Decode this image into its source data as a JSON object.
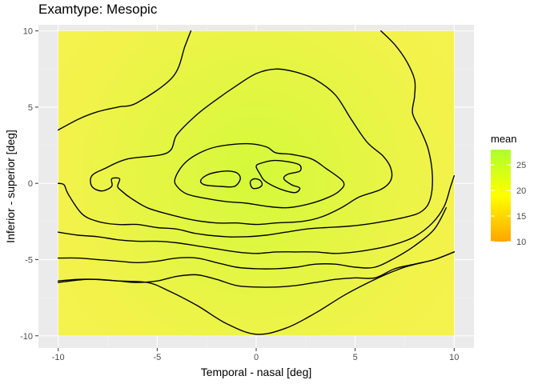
{
  "chart_data": {
    "type": "heatmap",
    "title": "Examtype:  Mesopic",
    "xlabel": "Temporal - nasal [deg]",
    "ylabel": "Inferior - superior [deg]",
    "xlim": [
      -11,
      11
    ],
    "ylim": [
      -10.8,
      10.4
    ],
    "field_extent": {
      "x": [
        -10,
        10
      ],
      "y": [
        -10,
        10
      ]
    },
    "x_ticks": [
      -10,
      -5,
      0,
      5,
      10
    ],
    "x_tick_labels": [
      "-10",
      "-5",
      "0",
      "5",
      "10"
    ],
    "y_ticks": [
      -10,
      -5,
      0,
      5,
      10
    ],
    "y_tick_labels": [
      "-10",
      "-5",
      "0",
      "5",
      "10"
    ],
    "grid": true,
    "legend": {
      "title": "mean",
      "placement": "right",
      "range": [
        10,
        28
      ],
      "breaks": [
        10,
        15,
        20,
        25
      ],
      "break_labels": [
        "10",
        "15",
        "20",
        "25"
      ],
      "colors": [
        {
          "value": 10,
          "color": "#ffa500"
        },
        {
          "value": 19,
          "color": "#ffff00"
        },
        {
          "value": 28,
          "color": "#adff2f"
        }
      ]
    },
    "surface": {
      "value_range": [
        19,
        26
      ],
      "center": [
        0,
        0.5
      ],
      "colors": {
        "low": "#f4f24c",
        "high": "#d4f93a"
      }
    },
    "contours": [
      {
        "name": "c1",
        "points": [
          [
            -2.8,
            0.2
          ],
          [
            -2.4,
            0.6
          ],
          [
            -1.6,
            0.8
          ],
          [
            -1,
            0.7
          ],
          [
            -0.8,
            0.3
          ],
          [
            -1.1,
            -0.2
          ],
          [
            -1.8,
            -0.2
          ],
          [
            -2.6,
            -0.1
          ],
          [
            -2.8,
            0.2
          ]
        ]
      },
      {
        "name": "c2",
        "points": [
          [
            -0.3,
            0.1
          ],
          [
            -0.1,
            0.3
          ],
          [
            0.2,
            0.2
          ],
          [
            0.3,
            -0.1
          ],
          [
            0.1,
            -0.3
          ],
          [
            -0.2,
            -0.3
          ],
          [
            -0.3,
            0.1
          ]
        ]
      },
      {
        "name": "c3",
        "points": [
          [
            -4.1,
            0.3
          ],
          [
            -3.7,
            1.2
          ],
          [
            -3,
            1.9
          ],
          [
            -2,
            2.4
          ],
          [
            -0.5,
            2.6
          ],
          [
            0.5,
            2.4
          ],
          [
            1,
            2
          ],
          [
            1.8,
            1.9
          ],
          [
            2.8,
            1.6
          ],
          [
            3.5,
            1
          ],
          [
            4.4,
            0.1
          ],
          [
            4.2,
            -0.5
          ],
          [
            3.5,
            -1
          ],
          [
            2.5,
            -1.4
          ],
          [
            1.5,
            -1.6
          ],
          [
            0.5,
            -1.5
          ],
          [
            -0.5,
            -1.3
          ],
          [
            -1.5,
            -1.2
          ],
          [
            -2.5,
            -1
          ],
          [
            -3.5,
            -0.7
          ],
          [
            -4,
            -0.2
          ],
          [
            -4.1,
            0.3
          ]
        ]
      },
      {
        "name": "c4",
        "points": [
          [
            0,
            1.1
          ],
          [
            0.2,
            1.3
          ],
          [
            0.9,
            1.5
          ],
          [
            1.7,
            1.4
          ],
          [
            2.2,
            1.2
          ],
          [
            2.2,
            0.8
          ],
          [
            1.6,
            0.6
          ],
          [
            1.4,
            0.3
          ],
          [
            1.8,
            -0.1
          ],
          [
            2.2,
            -0.3
          ],
          [
            2,
            -0.6
          ],
          [
            1.5,
            -0.5
          ],
          [
            0.9,
            -0.2
          ],
          [
            0.4,
            0.2
          ],
          [
            0.2,
            0.6
          ],
          [
            0,
            1.1
          ]
        ]
      },
      {
        "name": "c5",
        "points": [
          [
            -8.3,
            0.5
          ],
          [
            -7.6,
            1
          ],
          [
            -6.5,
            1.6
          ],
          [
            -4.5,
            2
          ],
          [
            -4,
            3.2
          ],
          [
            -3,
            4.5
          ],
          [
            -2,
            5.5
          ],
          [
            -1,
            6.4
          ],
          [
            0,
            7.2
          ],
          [
            1,
            7.5
          ],
          [
            2,
            7.3
          ],
          [
            3,
            6.8
          ],
          [
            4,
            5.8
          ],
          [
            4.8,
            4.2
          ],
          [
            5.6,
            2.7
          ],
          [
            6.4,
            1.8
          ],
          [
            6.8,
            1
          ],
          [
            6.8,
            0.2
          ],
          [
            6.3,
            -0.4
          ],
          [
            5.2,
            -0.9
          ],
          [
            4.3,
            -1.6
          ],
          [
            3.3,
            -2.2
          ],
          [
            2.3,
            -2.5
          ],
          [
            1,
            -2.6
          ],
          [
            0,
            -2.7
          ],
          [
            -1,
            -2.6
          ],
          [
            -2,
            -2.6
          ],
          [
            -3.2,
            -2.4
          ],
          [
            -4.5,
            -2
          ],
          [
            -5.5,
            -1.6
          ],
          [
            -6.3,
            -1
          ],
          [
            -6.8,
            -0.5
          ],
          [
            -7,
            -0.2
          ],
          [
            -6.9,
            0.3
          ],
          [
            -7.3,
            0.3
          ],
          [
            -7.3,
            -0.2
          ],
          [
            -7.8,
            -0.5
          ],
          [
            -8.3,
            -0.2
          ],
          [
            -8.3,
            0.5
          ]
        ]
      },
      {
        "name": "c6",
        "points": [
          [
            -10,
            3.5
          ],
          [
            -9,
            4.2
          ],
          [
            -8,
            4.7
          ],
          [
            -7,
            5
          ],
          [
            -6,
            5.3
          ],
          [
            -4.2,
            7
          ],
          [
            -3.6,
            9
          ],
          [
            -3.3,
            10
          ]
        ]
      },
      {
        "name": "c7",
        "points": [
          [
            6.3,
            10
          ],
          [
            7,
            9.1
          ],
          [
            7.6,
            8
          ],
          [
            8,
            6.8
          ],
          [
            8,
            5.7
          ],
          [
            7.9,
            4.6
          ],
          [
            8.3,
            3.5
          ],
          [
            8.7,
            2.2
          ],
          [
            8.9,
            0.5
          ],
          [
            8.8,
            -1
          ],
          [
            8.4,
            -1.8
          ],
          [
            7.6,
            -2.2
          ],
          [
            6,
            -2.6
          ],
          [
            4.8,
            -2.8
          ],
          [
            3.5,
            -2.9
          ],
          [
            2.5,
            -3
          ],
          [
            1.5,
            -3.2
          ],
          [
            0.5,
            -3.4
          ],
          [
            -0.5,
            -3.5
          ],
          [
            -1.5,
            -3.5
          ],
          [
            -3,
            -3.3
          ],
          [
            -4,
            -3
          ],
          [
            -5,
            -2.9
          ],
          [
            -6,
            -2.7
          ],
          [
            -7,
            -2.7
          ],
          [
            -8,
            -2.5
          ],
          [
            -8.8,
            -2
          ],
          [
            -9.5,
            -0.7
          ],
          [
            -9.7,
            -0.1
          ],
          [
            -10,
            0
          ]
        ]
      },
      {
        "name": "c8",
        "points": [
          [
            -10,
            -3.2
          ],
          [
            -9,
            -3.4
          ],
          [
            -8,
            -3.5
          ],
          [
            -7,
            -3.7
          ],
          [
            -6,
            -3.8
          ],
          [
            -5,
            -3.8
          ],
          [
            -4,
            -3.9
          ],
          [
            -3,
            -4.1
          ],
          [
            -2,
            -4.3
          ],
          [
            -1,
            -4.5
          ],
          [
            0,
            -4.6
          ],
          [
            1,
            -4.5
          ],
          [
            2,
            -4.5
          ],
          [
            3,
            -4.5
          ],
          [
            4,
            -4.6
          ],
          [
            5,
            -4.5
          ],
          [
            6,
            -4.3
          ],
          [
            7,
            -4
          ],
          [
            8,
            -3.5
          ],
          [
            8.9,
            -2.6
          ],
          [
            9.5,
            -1.5
          ],
          [
            9.8,
            -0.3
          ],
          [
            10,
            0.5
          ]
        ]
      },
      {
        "name": "c9",
        "points": [
          [
            -10,
            -6.4
          ],
          [
            -9,
            -6.3
          ],
          [
            -8,
            -6.3
          ],
          [
            -7,
            -6.4
          ],
          [
            -6,
            -6.5
          ],
          [
            -5,
            -6.4
          ],
          [
            -4,
            -6.1
          ],
          [
            -3,
            -6
          ],
          [
            -2,
            -6.3
          ],
          [
            -1,
            -6.7
          ],
          [
            0,
            -6.8
          ],
          [
            1,
            -6.8
          ],
          [
            2,
            -6.7
          ],
          [
            3,
            -6.5
          ],
          [
            4,
            -6.3
          ],
          [
            5,
            -6.2
          ],
          [
            6,
            -6.2
          ],
          [
            7,
            -5.6
          ],
          [
            8,
            -5.3
          ],
          [
            9,
            -5
          ],
          [
            10,
            -4.5
          ]
        ]
      },
      {
        "name": "c10",
        "points": [
          [
            -10,
            -5
          ],
          [
            -9,
            -5
          ],
          [
            -8,
            -5.1
          ],
          [
            -7,
            -5.2
          ],
          [
            -6,
            -5.3
          ],
          [
            -5,
            -5.2
          ],
          [
            -4,
            -5
          ],
          [
            -3,
            -5
          ],
          [
            -2,
            -5.3
          ],
          [
            -1,
            -5.6
          ],
          [
            0,
            -5.8
          ],
          [
            1,
            -5.8
          ],
          [
            2,
            -5.6
          ],
          [
            3,
            -5.3
          ],
          [
            4,
            -5.3
          ],
          [
            5,
            -5.3
          ],
          [
            6,
            -5.2
          ],
          [
            7,
            -4.7
          ],
          [
            8,
            -4.2
          ],
          [
            9,
            -3.6
          ],
          [
            10,
            -3
          ]
        ],
        "visible": false
      },
      {
        "name": "c11",
        "points": [
          [
            -10,
            -4.9
          ],
          [
            -9,
            -4.9
          ],
          [
            -8,
            -5
          ],
          [
            -7,
            -5.1
          ],
          [
            -6,
            -5.2
          ],
          [
            -5,
            -5.1
          ],
          [
            -4,
            -4.9
          ],
          [
            -3,
            -4.9
          ],
          [
            -2,
            -5.2
          ],
          [
            -1,
            -5.5
          ],
          [
            0,
            -5.6
          ],
          [
            1,
            -5.6
          ],
          [
            2,
            -5.5
          ],
          [
            3,
            -5.3
          ],
          [
            4,
            -5.3
          ],
          [
            5,
            -5.5
          ],
          [
            6,
            -5.5
          ],
          [
            7,
            -4.9
          ],
          [
            8,
            -4.1
          ],
          [
            9,
            -3
          ],
          [
            9.6,
            -1.6
          ]
        ]
      },
      {
        "name": "c12",
        "points": [
          [
            -10,
            -6.5
          ],
          [
            -8.5,
            -6.3
          ],
          [
            -7,
            -6.4
          ],
          [
            -5.5,
            -6.5
          ],
          [
            -4.5,
            -7
          ],
          [
            -3,
            -8
          ],
          [
            -1.5,
            -9.2
          ],
          [
            0,
            -9.9
          ],
          [
            1.5,
            -9.5
          ],
          [
            3,
            -8.5
          ],
          [
            4.5,
            -7.3
          ],
          [
            6,
            -6.3
          ],
          [
            7.5,
            -5.5
          ],
          [
            9,
            -5
          ],
          [
            10,
            -4.5
          ]
        ]
      }
    ]
  }
}
